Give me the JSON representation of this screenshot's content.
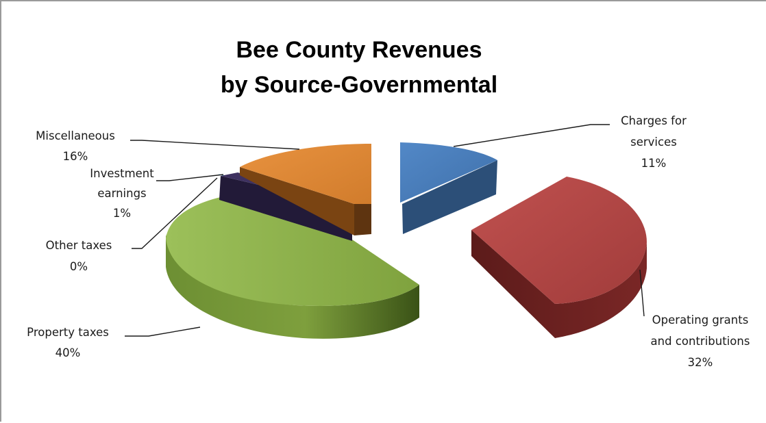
{
  "chart_data": {
    "type": "pie",
    "title": [
      "Bee County Revenues",
      "by Source-Governmental"
    ],
    "three_d": true,
    "exploded": true,
    "slices": [
      {
        "name": "Charges for services",
        "label_lines": [
          "Charges for",
          "services"
        ],
        "percent_label": "11%",
        "value": 11,
        "color": "#4a7ebb",
        "side_color": "#2c4f78"
      },
      {
        "name": "Operating grants and contributions",
        "label_lines": [
          "Operating grants",
          "and contributions"
        ],
        "percent_label": "32%",
        "value": 32,
        "color": "#b44a49",
        "side_color": "#5e1c1b"
      },
      {
        "name": "Property taxes",
        "label_lines": [
          "Property taxes"
        ],
        "percent_label": "40%",
        "value": 40,
        "color": "#8db04a",
        "side_color": "#4e6a22"
      },
      {
        "name": "Other taxes",
        "label_lines": [
          "Other taxes"
        ],
        "percent_label": "0%",
        "value": 0,
        "color": "#3fb7d4",
        "side_color": "#1d7088"
      },
      {
        "name": "Investment earnings",
        "label_lines": [
          "Investment",
          "earnings"
        ],
        "percent_label": "1%",
        "value": 1,
        "color": "#3e3160",
        "side_color": "#221a38"
      },
      {
        "name": "Miscellaneous",
        "label_lines": [
          "Miscellaneous"
        ],
        "percent_label": "16%",
        "value": 16,
        "color": "#e08a3a",
        "side_color": "#7a4412"
      }
    ]
  }
}
